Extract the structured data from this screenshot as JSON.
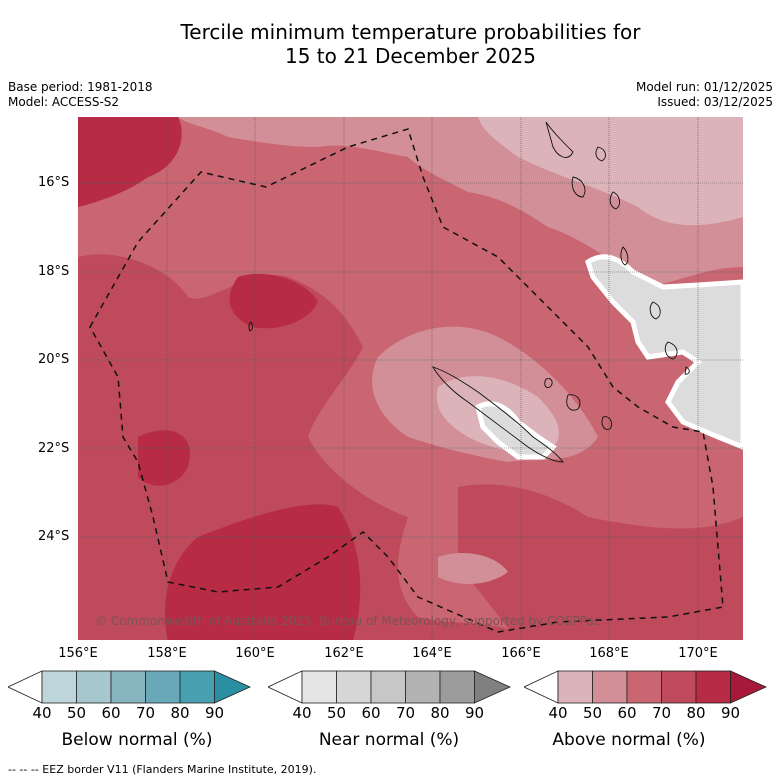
{
  "title": {
    "line1": "Tercile minimum temperature probabilities for",
    "line2": "15 to 21 December 2025"
  },
  "meta": {
    "base_period": "Base period: 1981-2018",
    "model": "Model: ACCESS-S2",
    "model_run": "Model run: 01/12/2025",
    "issued": "Issued: 03/12/2025"
  },
  "map": {
    "lat_labels": [
      "16°S",
      "18°S",
      "20°S",
      "22°S",
      "24°S"
    ],
    "lon_labels": [
      "156°E",
      "158°E",
      "160°E",
      "162°E",
      "164°E",
      "166°E",
      "168°E",
      "170°E"
    ],
    "copyright": "© Commonwealth of Australia 2025, Bureau of Meteorology, supported by COSPPac",
    "colors": {
      "above_50": "#dcb3b9",
      "above_60": "#d38f98",
      "above_70": "#c96671",
      "above_80": "#bf4a5b",
      "above_90": "#b72b45",
      "near_50": "#dcdcdc",
      "near_40": "#e5e5e5"
    }
  },
  "legends": [
    {
      "title": "Below normal (%)",
      "ticks": [
        "40",
        "50",
        "60",
        "70",
        "80",
        "90"
      ],
      "colors": [
        "#ffffff",
        "#bfd5dc",
        "#a5c7cd",
        "#86b5c0",
        "#68a8b8",
        "#489fb0",
        "#2b8fa3"
      ]
    },
    {
      "title": "Near normal (%)",
      "ticks": [
        "40",
        "50",
        "60",
        "70",
        "80",
        "90"
      ],
      "colors": [
        "#ffffff",
        "#e5e5e5",
        "#d6d6d6",
        "#c7c7c7",
        "#b3b3b3",
        "#9c9c9c",
        "#808080"
      ]
    },
    {
      "title": "Above normal (%)",
      "ticks": [
        "40",
        "50",
        "60",
        "70",
        "80",
        "90"
      ],
      "colors": [
        "#ffffff",
        "#dcb3b9",
        "#d38f98",
        "#c96671",
        "#bf4a5b",
        "#b72b45",
        "#a8183b"
      ]
    }
  ],
  "footer": "--  --  -- EEZ border V11 (Flanders Marine Institute, 2019)."
}
